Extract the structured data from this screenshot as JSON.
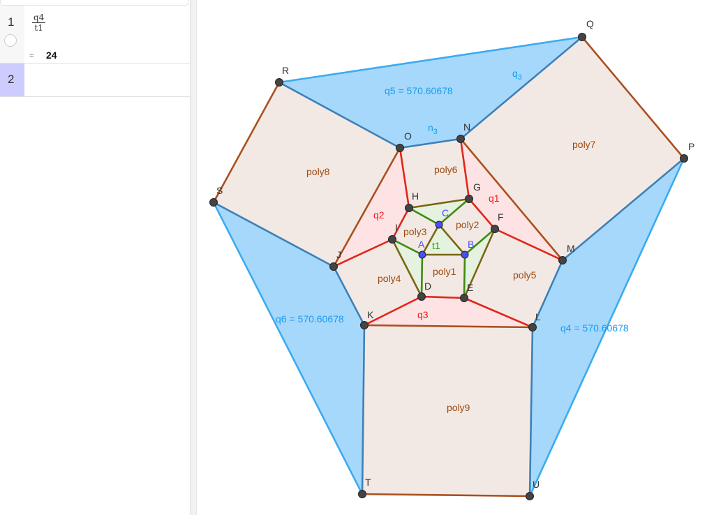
{
  "algebra": {
    "rows": [
      {
        "index": "1",
        "numerator": "q4",
        "denominator": "t1",
        "approx_symbol": "≈",
        "value": "24"
      },
      {
        "index": "2"
      }
    ]
  },
  "colors": {
    "blue_fill": "#a6d8fb",
    "blue_edge": "#3d80b8",
    "blue_outer_edge": "#3aabf0",
    "beige_fill": "#f3e9e4",
    "pink_fill": "#fde3e3",
    "green_fill": "#e4f2df",
    "red_edge": "#e0261a",
    "brown_edge": "#a9501f",
    "green_edge": "#3e8a12",
    "olive_edge": "#7a6512",
    "point": "#444444",
    "free_point": "#4c4cff",
    "blue_label": "#1a9cf0",
    "red_label": "#e81e1e",
    "brown_label": "#9c4a10",
    "green_label": "#2e9a0e"
  },
  "points": [
    "A",
    "B",
    "C",
    "D",
    "E",
    "F",
    "G",
    "H",
    "I",
    "J",
    "K",
    "L",
    "M",
    "N",
    "O",
    "P",
    "Q",
    "R",
    "S",
    "T",
    "U"
  ],
  "free_points": [
    "A",
    "B",
    "C"
  ],
  "labels": {
    "q5": "q5 = 570.60678",
    "q4": "q4 = 570.60678",
    "q6": "q6 = 570.60678",
    "q1": "q1",
    "q2": "q2",
    "q3": "q3",
    "t1": "t1",
    "n3_main": "n",
    "n3_sub": "3",
    "q3seg_main": "q",
    "q3seg_sub": "3",
    "poly1": "poly1",
    "poly2": "poly2",
    "poly3": "poly3",
    "poly4": "poly4",
    "poly5": "poly5",
    "poly6": "poly6",
    "poly7": "poly7",
    "poly8": "poly8",
    "poly9": "poly9"
  }
}
